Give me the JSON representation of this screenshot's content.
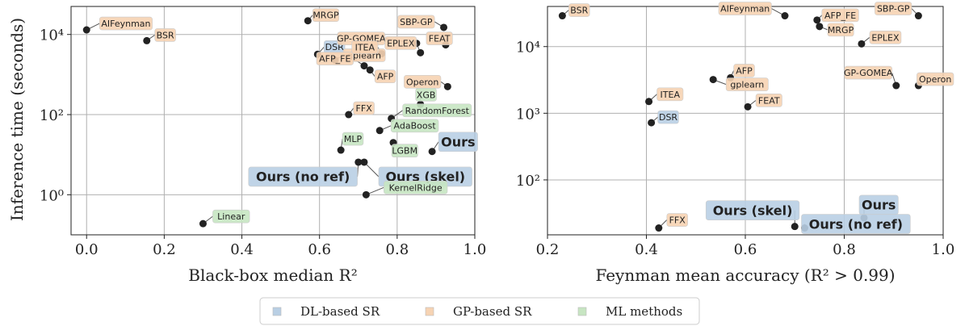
{
  "colors": {
    "dl": "#b9cfe4",
    "gp": "#f6d3b3",
    "ml": "#c7e5c2",
    "point": "#222222",
    "grid": "#b0b0b0"
  },
  "legend": [
    {
      "label": "DL-based SR",
      "group": "dl"
    },
    {
      "label": "GP-based SR",
      "group": "gp"
    },
    {
      "label": "ML methods",
      "group": "ml"
    }
  ],
  "chart_data": [
    {
      "type": "scatter",
      "xlabel": "Black-box median R²",
      "ylabel": "Inference time (seconds)",
      "xlim": [
        -0.04,
        1.0
      ],
      "ylim": [
        0.1,
        50000
      ],
      "y_scale": "log",
      "xticks": [
        0.0,
        0.2,
        0.4,
        0.6,
        0.8,
        1.0
      ],
      "xtick_labels": [
        "0.0",
        "0.2",
        "0.4",
        "0.6",
        "0.8",
        "1.0"
      ],
      "yticks": [
        1,
        100,
        10000
      ],
      "ytick_labels": [
        "10⁰",
        "10²",
        "10⁴"
      ],
      "grid": true,
      "points": [
        {
          "label": "AIFeynman",
          "x": 0.0,
          "y": 13000,
          "group": "gp"
        },
        {
          "label": "BSR",
          "x": 0.155,
          "y": 7000,
          "group": "gp"
        },
        {
          "label": "MRGP",
          "x": 0.57,
          "y": 22000,
          "group": "gp"
        },
        {
          "label": "SBP-GP",
          "x": 0.92,
          "y": 15000,
          "group": "gp"
        },
        {
          "label": "DSR",
          "x": 0.595,
          "y": 3200,
          "group": "dl"
        },
        {
          "label": "gplearn",
          "x": 0.64,
          "y": 2300,
          "group": "gp"
        },
        {
          "label": "GP-GOMEA",
          "x": 0.85,
          "y": 6000,
          "group": "gp"
        },
        {
          "label": "FEAT",
          "x": 0.925,
          "y": 5500,
          "group": "gp"
        },
        {
          "label": "ITEA",
          "x": 0.76,
          "y": 3300,
          "group": "gp"
        },
        {
          "label": "EPLEX",
          "x": 0.86,
          "y": 3500,
          "group": "gp"
        },
        {
          "label": "AFP_FE",
          "x": 0.715,
          "y": 1650,
          "group": "gp"
        },
        {
          "label": "AFP",
          "x": 0.73,
          "y": 1300,
          "group": "gp"
        },
        {
          "label": "Operon",
          "x": 0.93,
          "y": 500,
          "group": "gp"
        },
        {
          "label": "XGB",
          "x": 0.86,
          "y": 180,
          "group": "ml"
        },
        {
          "label": "RandomForest",
          "x": 0.785,
          "y": 80,
          "group": "ml"
        },
        {
          "label": "FFX",
          "x": 0.675,
          "y": 100,
          "group": "gp"
        },
        {
          "label": "AdaBoost",
          "x": 0.755,
          "y": 40,
          "group": "ml"
        },
        {
          "label": "Ours",
          "x": 0.89,
          "y": 12,
          "group": "dl",
          "emphasis": true
        },
        {
          "label": "MLP",
          "x": 0.655,
          "y": 13,
          "group": "ml"
        },
        {
          "label": "LGBM",
          "x": 0.79,
          "y": 20,
          "group": "ml"
        },
        {
          "label": "Ours (no ref)",
          "x": 0.7,
          "y": 6.5,
          "group": "dl",
          "emphasis": true
        },
        {
          "label": "Ours (skel)",
          "x": 0.715,
          "y": 6.5,
          "group": "dl",
          "emphasis": true
        },
        {
          "label": "KernelRidge",
          "x": 0.72,
          "y": 1.0,
          "group": "ml"
        },
        {
          "label": "Linear",
          "x": 0.3,
          "y": 0.19,
          "group": "ml"
        }
      ]
    },
    {
      "type": "scatter",
      "xlabel": "Feynman mean accuracy (R² > 0.99)",
      "ylabel": "",
      "xlim": [
        0.2,
        1.0
      ],
      "ylim": [
        15,
        40000
      ],
      "y_scale": "log",
      "xticks": [
        0.2,
        0.4,
        0.6,
        0.8,
        1.0
      ],
      "xtick_labels": [
        "0.2",
        "0.4",
        "0.6",
        "0.8",
        "1.0"
      ],
      "yticks": [
        100,
        1000,
        10000
      ],
      "ytick_labels": [
        "10²",
        "10³",
        "10⁴"
      ],
      "grid": true,
      "points": [
        {
          "label": "BSR",
          "x": 0.23,
          "y": 29000,
          "group": "gp"
        },
        {
          "label": "AIFeynman",
          "x": 0.68,
          "y": 29000,
          "group": "gp"
        },
        {
          "label": "AFP_FE",
          "x": 0.745,
          "y": 25000,
          "group": "gp"
        },
        {
          "label": "SBP-GP",
          "x": 0.95,
          "y": 29000,
          "group": "gp"
        },
        {
          "label": "MRGP",
          "x": 0.75,
          "y": 20000,
          "group": "gp"
        },
        {
          "label": "EPLEX",
          "x": 0.835,
          "y": 11000,
          "group": "gp"
        },
        {
          "label": "AFP",
          "x": 0.57,
          "y": 3400,
          "group": "gp"
        },
        {
          "label": "gplearn",
          "x": 0.535,
          "y": 3200,
          "group": "gp"
        },
        {
          "label": "GP-GOMEA",
          "x": 0.905,
          "y": 2600,
          "group": "gp"
        },
        {
          "label": "Operon",
          "x": 0.95,
          "y": 2600,
          "group": "gp"
        },
        {
          "label": "ITEA",
          "x": 0.405,
          "y": 1500,
          "group": "gp"
        },
        {
          "label": "FEAT",
          "x": 0.605,
          "y": 1250,
          "group": "gp"
        },
        {
          "label": "DSR",
          "x": 0.41,
          "y": 720,
          "group": "dl"
        },
        {
          "label": "Ours",
          "x": 0.84,
          "y": 27,
          "group": "dl",
          "emphasis": true
        },
        {
          "label": "Ours (skel)",
          "x": 0.7,
          "y": 20,
          "group": "dl",
          "emphasis": true
        },
        {
          "label": "Ours (no ref)",
          "x": 0.72,
          "y": 19,
          "group": "dl",
          "emphasis": true
        },
        {
          "label": "FFX",
          "x": 0.425,
          "y": 19,
          "group": "gp"
        }
      ]
    }
  ]
}
